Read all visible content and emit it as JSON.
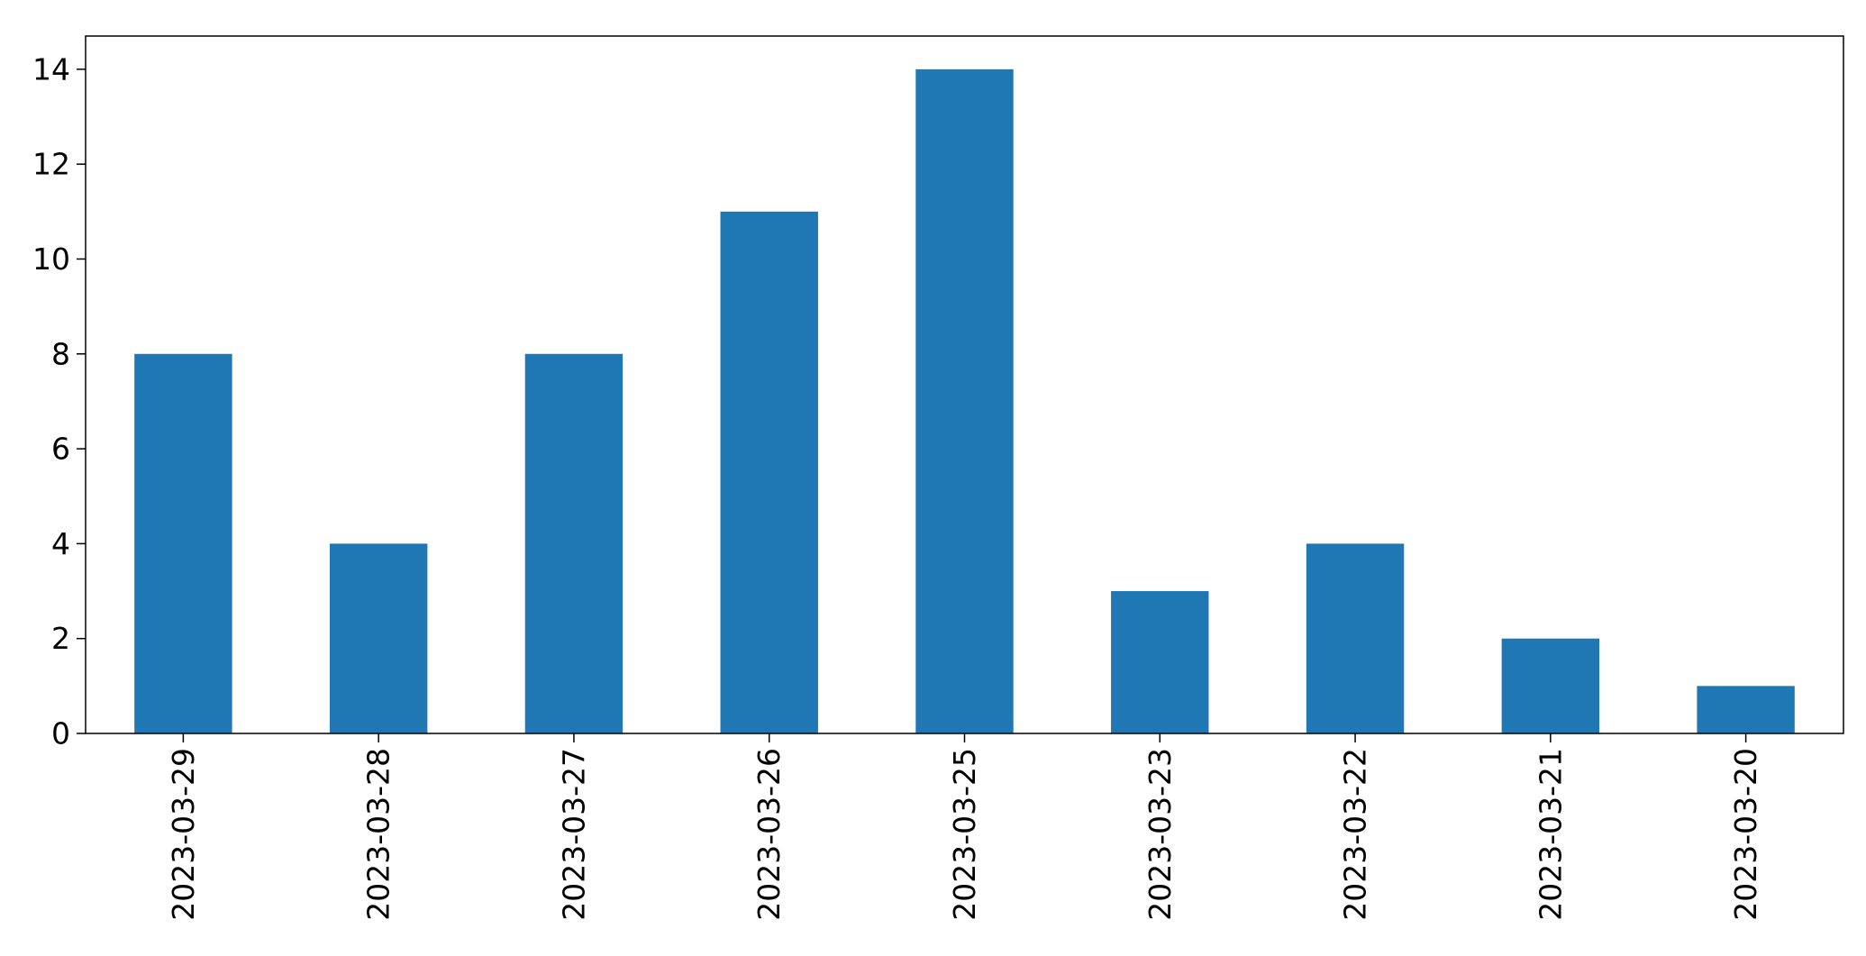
{
  "chart_data": {
    "type": "bar",
    "categories": [
      "2023-03-29",
      "2023-03-28",
      "2023-03-27",
      "2023-03-26",
      "2023-03-25",
      "2023-03-23",
      "2023-03-22",
      "2023-03-21",
      "2023-03-20"
    ],
    "values": [
      8,
      4,
      8,
      11,
      14,
      3,
      4,
      2,
      1
    ],
    "title": "",
    "xlabel": "",
    "ylabel": "",
    "ylim": [
      0,
      14.7
    ],
    "yticks": [
      0,
      2,
      4,
      6,
      8,
      10,
      12,
      14
    ],
    "bar_color": "#1f77b4",
    "grid": false,
    "legend": "none"
  }
}
